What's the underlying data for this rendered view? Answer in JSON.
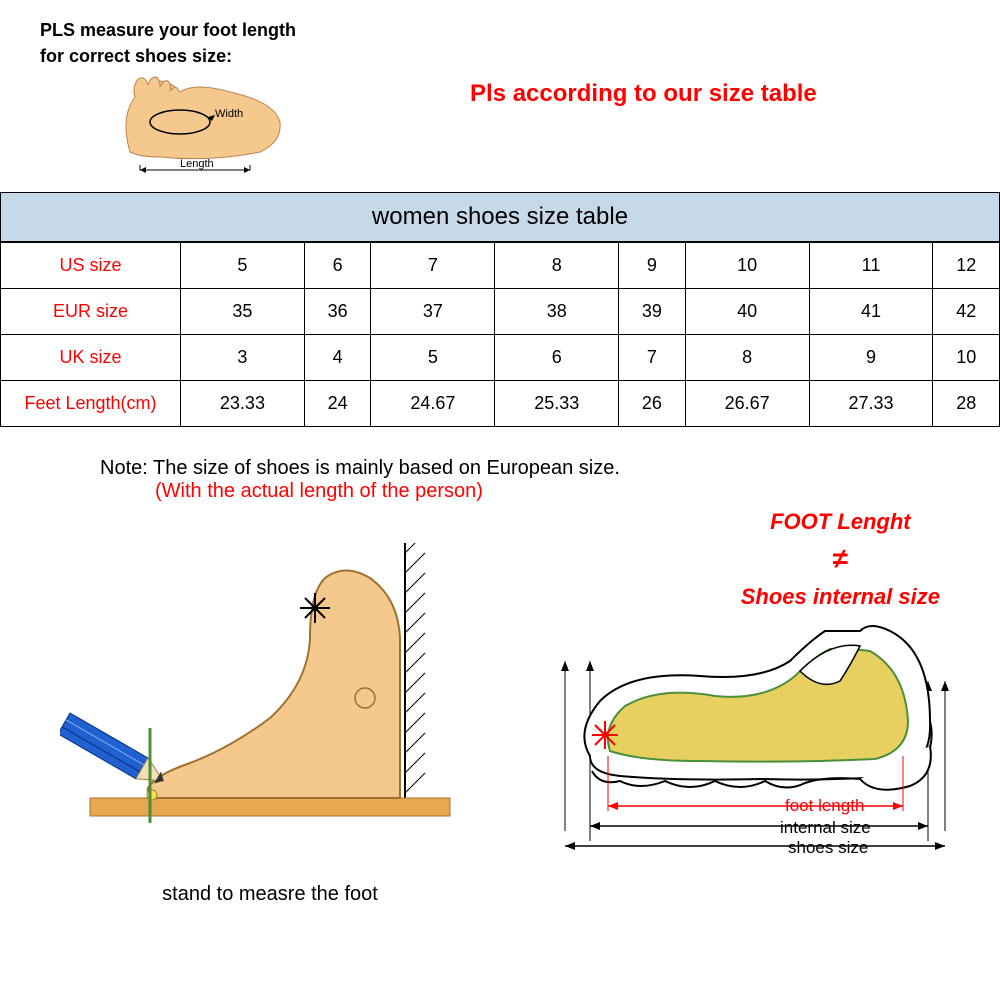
{
  "header": {
    "measure_line1": "PLS measure your foot length",
    "measure_line2": "for correct shoes size:",
    "width_label": "Width",
    "length_label": "Length",
    "warning": "Pls according to our size table"
  },
  "table": {
    "title": "women shoes size table",
    "rows": [
      {
        "label": "US size",
        "values": [
          "5",
          "6",
          "7",
          "8",
          "9",
          "10",
          "11",
          "12"
        ]
      },
      {
        "label": "EUR size",
        "values": [
          "35",
          "36",
          "37",
          "38",
          "39",
          "40",
          "41",
          "42"
        ]
      },
      {
        "label": "UK size",
        "values": [
          "3",
          "4",
          "5",
          "6",
          "7",
          "8",
          "9",
          "10"
        ]
      },
      {
        "label": "Feet Length(cm)",
        "values": [
          "23.33",
          "24",
          "24.67",
          "25.33",
          "26",
          "26.67",
          "27.33",
          "28"
        ]
      }
    ]
  },
  "note": {
    "black": "Note: The size of shoes is mainly based on European size.",
    "red": "(With the actual length of the person)"
  },
  "length_msg": {
    "l1": "FOOT Lenght",
    "neq": "≠",
    "l2": "Shoes internal size"
  },
  "diagrams": {
    "stand_caption": "stand to measre the foot",
    "foot_length": "foot length",
    "internal_size": "internal size",
    "shoes_size": "shoes size"
  },
  "colors": {
    "red": "#ff0000",
    "skin": "#f5c98d",
    "skin_dark": "#e0a760",
    "blue": "#2060d0",
    "header_bg": "#c5d9e8",
    "green": "#4a8f3a"
  }
}
